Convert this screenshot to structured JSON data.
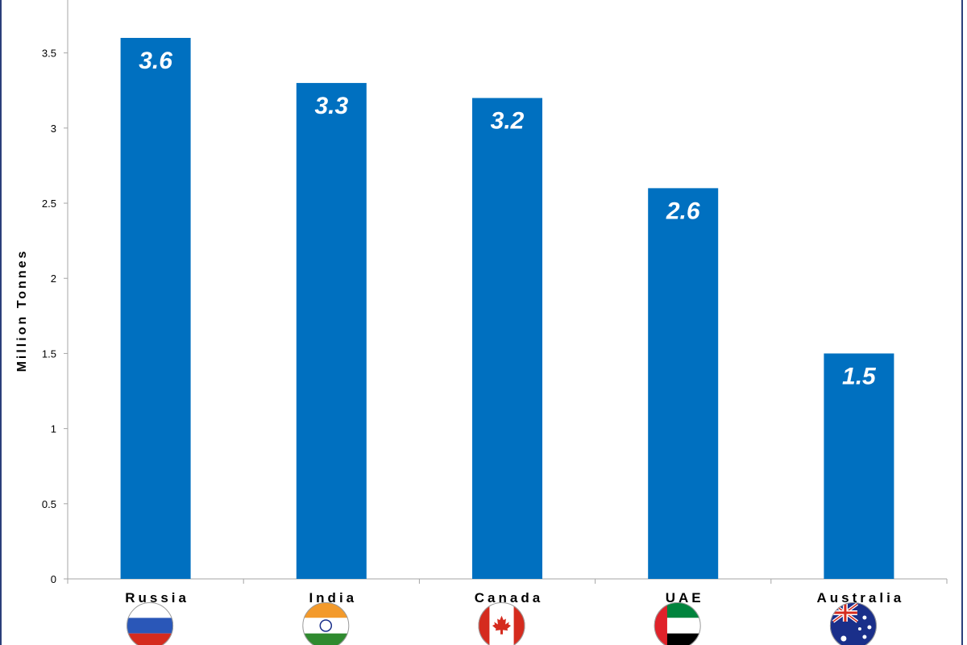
{
  "chart_data": {
    "type": "bar",
    "title": "",
    "xlabel": "",
    "ylabel": "Million Tonnes",
    "ylim": [
      0,
      3.6
    ],
    "yticks": [
      0,
      0.5,
      1,
      1.5,
      2,
      2.5,
      3,
      3.5
    ],
    "grid": false,
    "categories": [
      "Russia",
      "India",
      "Canada",
      "UAE",
      "Australia"
    ],
    "values": [
      3.6,
      3.3,
      3.2,
      2.6,
      1.5
    ],
    "value_labels": [
      "3.6",
      "3.3",
      "3.2",
      "2.6",
      "1.5"
    ],
    "category_flag_icons": [
      "russia-flag-icon",
      "india-flag-icon",
      "canada-flag-icon",
      "uae-flag-icon",
      "australia-flag-icon"
    ],
    "bar_color": "#0070C0",
    "data_label_color": "#FFFFFF",
    "axis_color": "#A6A6A6",
    "frame_color": "#2B3F7A"
  }
}
